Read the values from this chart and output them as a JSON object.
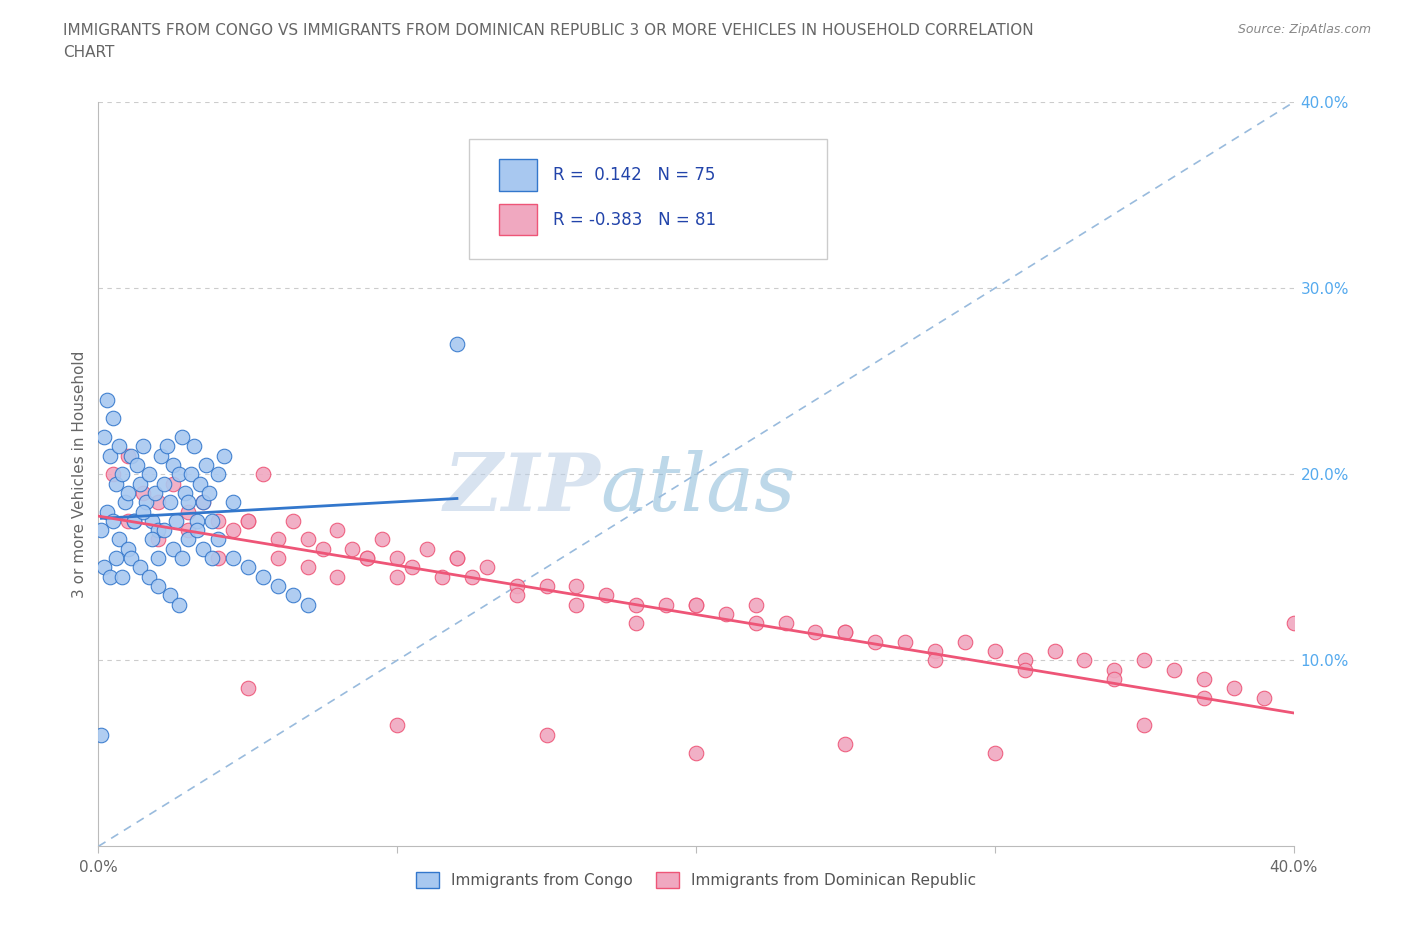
{
  "title_line1": "IMMIGRANTS FROM CONGO VS IMMIGRANTS FROM DOMINICAN REPUBLIC 3 OR MORE VEHICLES IN HOUSEHOLD CORRELATION",
  "title_line2": "CHART",
  "source": "Source: ZipAtlas.com",
  "ylabel": "3 or more Vehicles in Household",
  "legend_label1": "Immigrants from Congo",
  "legend_label2": "Immigrants from Dominican Republic",
  "R1": 0.142,
  "N1": 75,
  "R2": -0.383,
  "N2": 81,
  "xlim": [
    0.0,
    0.4
  ],
  "ylim": [
    0.0,
    0.4
  ],
  "color_congo": "#a8c8f0",
  "color_dr": "#f0a8c0",
  "line_color_congo": "#3377cc",
  "line_color_dr": "#ee5577",
  "diag_color": "#99bbdd",
  "grid_color": "#cccccc",
  "title_color": "#666666",
  "axis_color": "#bbbbbb",
  "tick_color_right": "#55aaee",
  "watermark_color": "#c8ddf0",
  "congo_x": [
    0.002,
    0.003,
    0.004,
    0.005,
    0.006,
    0.007,
    0.008,
    0.009,
    0.01,
    0.011,
    0.012,
    0.013,
    0.014,
    0.015,
    0.016,
    0.017,
    0.018,
    0.019,
    0.02,
    0.021,
    0.022,
    0.023,
    0.024,
    0.025,
    0.026,
    0.027,
    0.028,
    0.029,
    0.03,
    0.031,
    0.032,
    0.033,
    0.034,
    0.035,
    0.036,
    0.037,
    0.038,
    0.04,
    0.042,
    0.045,
    0.001,
    0.003,
    0.005,
    0.007,
    0.01,
    0.012,
    0.015,
    0.018,
    0.02,
    0.022,
    0.025,
    0.028,
    0.03,
    0.033,
    0.035,
    0.038,
    0.04,
    0.045,
    0.05,
    0.055,
    0.06,
    0.065,
    0.07,
    0.002,
    0.004,
    0.006,
    0.008,
    0.011,
    0.014,
    0.017,
    0.02,
    0.024,
    0.027,
    0.001,
    0.12
  ],
  "congo_y": [
    0.22,
    0.24,
    0.21,
    0.23,
    0.195,
    0.215,
    0.2,
    0.185,
    0.19,
    0.21,
    0.175,
    0.205,
    0.195,
    0.215,
    0.185,
    0.2,
    0.175,
    0.19,
    0.17,
    0.21,
    0.195,
    0.215,
    0.185,
    0.205,
    0.175,
    0.2,
    0.22,
    0.19,
    0.185,
    0.2,
    0.215,
    0.175,
    0.195,
    0.185,
    0.205,
    0.19,
    0.175,
    0.2,
    0.21,
    0.185,
    0.17,
    0.18,
    0.175,
    0.165,
    0.16,
    0.175,
    0.18,
    0.165,
    0.155,
    0.17,
    0.16,
    0.155,
    0.165,
    0.17,
    0.16,
    0.155,
    0.165,
    0.155,
    0.15,
    0.145,
    0.14,
    0.135,
    0.13,
    0.15,
    0.145,
    0.155,
    0.145,
    0.155,
    0.15,
    0.145,
    0.14,
    0.135,
    0.13,
    0.06,
    0.27
  ],
  "dr_x": [
    0.005,
    0.01,
    0.015,
    0.02,
    0.025,
    0.03,
    0.035,
    0.04,
    0.045,
    0.05,
    0.055,
    0.06,
    0.065,
    0.07,
    0.075,
    0.08,
    0.085,
    0.09,
    0.095,
    0.1,
    0.105,
    0.11,
    0.115,
    0.12,
    0.125,
    0.13,
    0.14,
    0.15,
    0.16,
    0.17,
    0.18,
    0.19,
    0.2,
    0.21,
    0.22,
    0.23,
    0.24,
    0.25,
    0.26,
    0.27,
    0.28,
    0.29,
    0.3,
    0.31,
    0.32,
    0.33,
    0.34,
    0.35,
    0.36,
    0.37,
    0.38,
    0.39,
    0.01,
    0.02,
    0.03,
    0.04,
    0.05,
    0.06,
    0.07,
    0.08,
    0.09,
    0.1,
    0.12,
    0.14,
    0.16,
    0.18,
    0.2,
    0.22,
    0.25,
    0.28,
    0.31,
    0.34,
    0.37,
    0.05,
    0.1,
    0.15,
    0.2,
    0.25,
    0.3,
    0.35,
    0.4
  ],
  "dr_y": [
    0.2,
    0.21,
    0.19,
    0.185,
    0.195,
    0.18,
    0.185,
    0.175,
    0.17,
    0.175,
    0.2,
    0.165,
    0.175,
    0.165,
    0.16,
    0.17,
    0.16,
    0.155,
    0.165,
    0.155,
    0.15,
    0.16,
    0.145,
    0.155,
    0.145,
    0.15,
    0.14,
    0.14,
    0.14,
    0.135,
    0.13,
    0.13,
    0.13,
    0.125,
    0.13,
    0.12,
    0.115,
    0.115,
    0.11,
    0.11,
    0.105,
    0.11,
    0.105,
    0.1,
    0.105,
    0.1,
    0.095,
    0.1,
    0.095,
    0.09,
    0.085,
    0.08,
    0.175,
    0.165,
    0.17,
    0.155,
    0.175,
    0.155,
    0.15,
    0.145,
    0.155,
    0.145,
    0.155,
    0.135,
    0.13,
    0.12,
    0.13,
    0.12,
    0.115,
    0.1,
    0.095,
    0.09,
    0.08,
    0.085,
    0.065,
    0.06,
    0.05,
    0.055,
    0.05,
    0.065,
    0.12
  ]
}
